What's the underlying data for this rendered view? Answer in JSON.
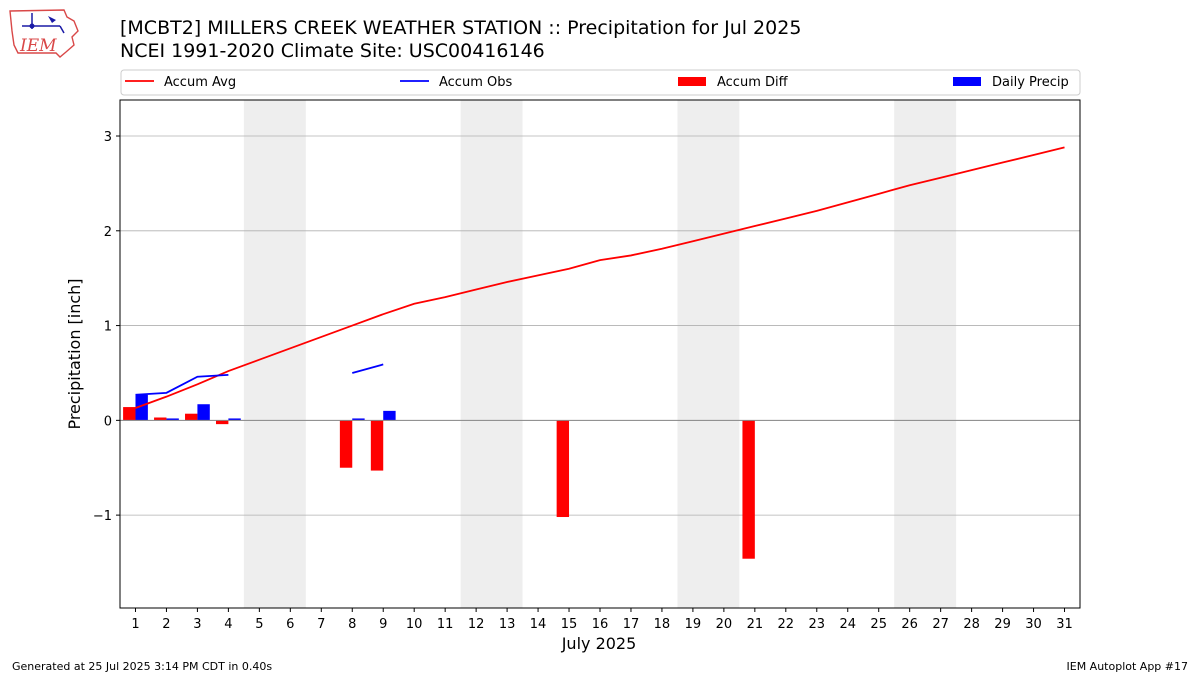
{
  "header": {
    "title_line1": "[MCBT2] MILLERS CREEK WEATHER STATION :: Precipitation for Jul 2025",
    "title_line2": "NCEI 1991-2020 Climate Site: USC00416146",
    "logo_text": "IEM"
  },
  "footer": {
    "generated": "Generated at 25 Jul 2025 3:14 PM CDT in 0.40s",
    "app": "IEM Autoplot App #17"
  },
  "colors": {
    "accum_avg": "#ff0000",
    "accum_obs": "#0000ff",
    "accum_diff": "#ff0000",
    "daily_precip": "#0000ff",
    "weekend_shade": "#eeeeee",
    "grid": "#b0b0b0"
  },
  "chart_data": {
    "type": "bar",
    "title": "[MCBT2] MILLERS CREEK WEATHER STATION :: Precipitation for Jul 2025",
    "subtitle": "NCEI 1991-2020 Climate Site: USC00416146",
    "xlabel": "July 2025",
    "ylabel": "Precipitation [inch]",
    "xlim": [
      0.5,
      31.5
    ],
    "ylim": [
      -1.98,
      3.38
    ],
    "yticks": [
      -1,
      0,
      1,
      2,
      3
    ],
    "ytick_labels": [
      "−1",
      "0",
      "1",
      "2",
      "3"
    ],
    "xticks": [
      1,
      2,
      3,
      4,
      5,
      6,
      7,
      8,
      9,
      10,
      11,
      12,
      13,
      14,
      15,
      16,
      17,
      18,
      19,
      20,
      21,
      22,
      23,
      24,
      25,
      26,
      27,
      28,
      29,
      30,
      31
    ],
    "grid": "y-only",
    "legend_placement": "top, above plot, 4 columns",
    "weekend_shading": [
      [
        4.5,
        6.5
      ],
      [
        11.5,
        13.5
      ],
      [
        18.5,
        20.5
      ],
      [
        25.5,
        27.5
      ]
    ],
    "series": [
      {
        "name": "Accum Avg",
        "kind": "line",
        "x": [
          1,
          2,
          3,
          4,
          5,
          6,
          7,
          8,
          9,
          10,
          11,
          12,
          13,
          14,
          15,
          16,
          17,
          18,
          19,
          20,
          21,
          22,
          23,
          24,
          25,
          26,
          27,
          28,
          29,
          30,
          31
        ],
        "values": [
          0.13,
          0.25,
          0.38,
          0.52,
          0.64,
          0.76,
          0.88,
          1.0,
          1.12,
          1.23,
          1.3,
          1.38,
          1.46,
          1.53,
          1.6,
          1.69,
          1.74,
          1.81,
          1.89,
          1.97,
          2.05,
          2.13,
          2.21,
          2.3,
          2.39,
          2.48,
          2.56,
          2.64,
          2.72,
          2.8,
          2.88
        ]
      },
      {
        "name": "Accum Obs",
        "kind": "line",
        "segments": [
          {
            "x": [
              1,
              2,
              3,
              4
            ],
            "values": [
              0.27,
              0.29,
              0.46,
              0.48
            ]
          },
          {
            "x": [
              8,
              9
            ],
            "values": [
              0.5,
              0.59
            ]
          }
        ]
      },
      {
        "name": "Accum Diff",
        "kind": "bar",
        "x": [
          1,
          2,
          3,
          4,
          8,
          9,
          15,
          21
        ],
        "values": [
          0.14,
          0.03,
          0.07,
          -0.04,
          -0.5,
          -0.53,
          -1.02,
          -1.46
        ]
      },
      {
        "name": "Daily Precip",
        "kind": "bar",
        "x": [
          1,
          2,
          3,
          4,
          8,
          9
        ],
        "values": [
          0.27,
          0.02,
          0.17,
          0.02,
          0.02,
          0.1
        ]
      }
    ]
  }
}
